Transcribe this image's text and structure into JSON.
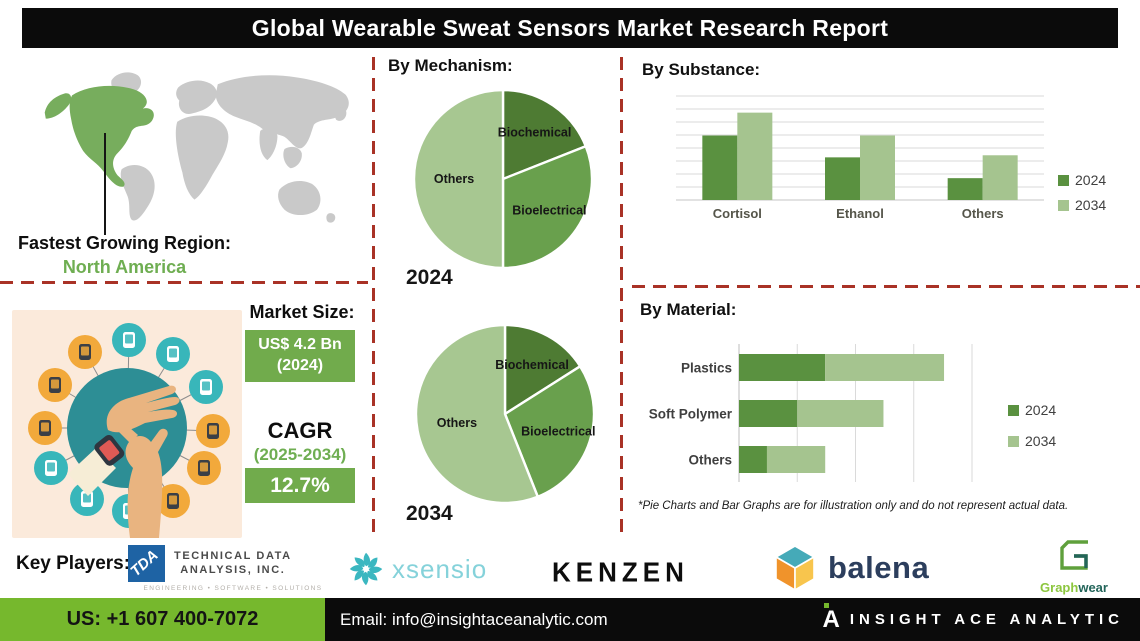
{
  "title": "Global Wearable Sweat Sensors Market Research Report",
  "region": {
    "heading": "Fastest Growing Region:",
    "value": "North America"
  },
  "sections": {
    "mechanism": "By Mechanism:",
    "substance": "By  Substance:",
    "material": "By Material:"
  },
  "market": {
    "heading": "Market Size:",
    "size_value": "US$ 4.2 Bn",
    "size_year": "(2024)",
    "cagr_label": "CAGR",
    "cagr_period": "(2025-2034)",
    "cagr_value": "12.7%"
  },
  "disclaimer": "*Pie Charts and Bar Graphs are for illustration only and do not represent actual data.",
  "key_players": {
    "heading": "Key Players:",
    "tda": {
      "logo_text": "TDA",
      "line1": "TECHNICAL DATA",
      "line2": "ANALYSIS, INC.",
      "tagline": "ENGINEERING  •  SOFTWARE  •  SOLUTIONS"
    },
    "xsensio": {
      "text": "xsensio"
    },
    "kenzen": {
      "text": "KENZEN"
    },
    "balena": {
      "text": "balena"
    },
    "graphwear": {
      "part1": "Graph",
      "part2": "wear"
    }
  },
  "footer": {
    "phone": "US: +1 607 400-7072",
    "email": "Email: info@insightaceanalytic.com",
    "brand": "INSIGHT ACE ANALYTIC",
    "brand_mark": "A"
  },
  "colors": {
    "accent_green": "#71ab4c",
    "dark_green": "#4e7b33",
    "mid_green": "#69a04d",
    "light_green": "#a7c791",
    "map_green": "#77ad5d",
    "map_gray": "#c9c9c9",
    "dashed_red": "#a93226",
    "footer_green": "#76b82d",
    "title_bg": "#0b0b0b"
  },
  "chart_data": [
    {
      "id": "mechanism_2024",
      "type": "pie",
      "year_label": "2024",
      "labels": [
        "Biochemical",
        "Bioelectrical",
        "Others"
      ],
      "values": [
        19,
        31,
        50
      ],
      "colors": [
        "#4e7b33",
        "#69a04d",
        "#a7c791"
      ],
      "note": "illustrative shares, starts at 12 o'clock clockwise"
    },
    {
      "id": "mechanism_2034",
      "type": "pie",
      "year_label": "2034",
      "labels": [
        "Biochemical",
        "Bioelectrical",
        "Others"
      ],
      "values": [
        16,
        28,
        56
      ],
      "colors": [
        "#4e7b33",
        "#69a04d",
        "#a7c791"
      ],
      "note": "illustrative shares, starts at 12 o'clock clockwise"
    },
    {
      "id": "substance",
      "type": "grouped_bar",
      "title": "By Substance",
      "categories": [
        "Cortisol",
        "Ethanol",
        "Others"
      ],
      "series": [
        {
          "name": "2024",
          "color": "#5a9140",
          "values": [
            62,
            41,
            21
          ]
        },
        {
          "name": "2034",
          "color": "#a5c48f",
          "values": [
            84,
            62,
            43
          ]
        }
      ],
      "ylim": [
        0,
        100
      ],
      "gridlines": 8,
      "legend_position": "right"
    },
    {
      "id": "material",
      "type": "stacked_hbar",
      "title": "By Material",
      "categories": [
        "Plastics",
        "Soft Polymer",
        "Others"
      ],
      "series": [
        {
          "name": "2024",
          "color": "#5a9140",
          "values": [
            37,
            25,
            12
          ]
        },
        {
          "name": "2034",
          "color": "#a5c48f",
          "values": [
            51,
            37,
            25
          ]
        }
      ],
      "xlim": [
        0,
        100
      ],
      "gridlines": 4,
      "legend_position": "right"
    }
  ]
}
